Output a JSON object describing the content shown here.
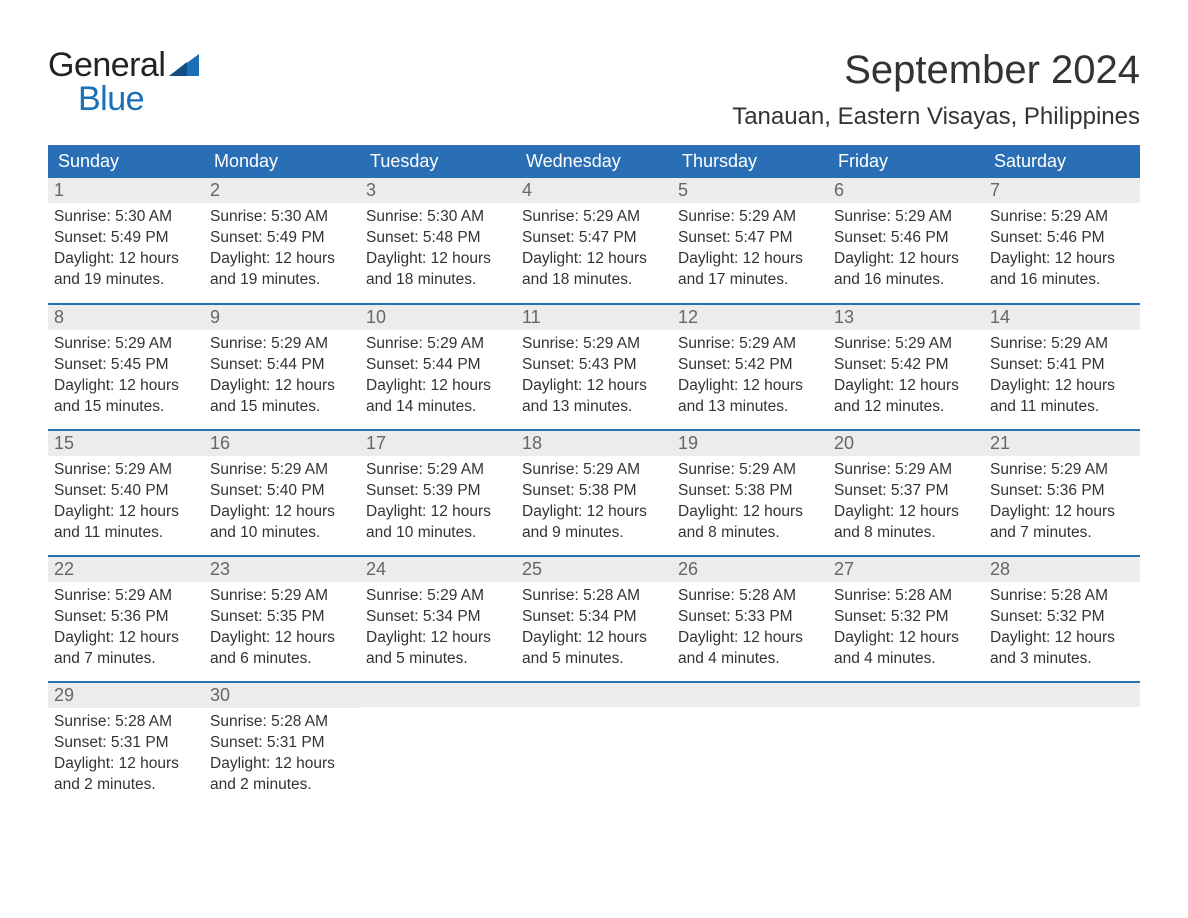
{
  "logo": {
    "word1": "General",
    "word2": "Blue",
    "text_color": "#222222",
    "accent_color": "#1a6fb8"
  },
  "header": {
    "month_title": "September 2024",
    "location": "Tanauan, Eastern Visayas, Philippines"
  },
  "colors": {
    "header_row_bg": "#2a6eb6",
    "header_row_text": "#ffffff",
    "daynum_bg": "#ececec",
    "daynum_text": "#666666",
    "body_text": "#333333",
    "week_separator": "#2a6eb6",
    "page_bg": "#ffffff"
  },
  "layout": {
    "columns": 7,
    "rows": 5,
    "col_width_pct": 14.28
  },
  "weekdays": [
    "Sunday",
    "Monday",
    "Tuesday",
    "Wednesday",
    "Thursday",
    "Friday",
    "Saturday"
  ],
  "days": [
    {
      "n": "1",
      "sunrise": "Sunrise: 5:30 AM",
      "sunset": "Sunset: 5:49 PM",
      "d1": "Daylight: 12 hours",
      "d2": "and 19 minutes."
    },
    {
      "n": "2",
      "sunrise": "Sunrise: 5:30 AM",
      "sunset": "Sunset: 5:49 PM",
      "d1": "Daylight: 12 hours",
      "d2": "and 19 minutes."
    },
    {
      "n": "3",
      "sunrise": "Sunrise: 5:30 AM",
      "sunset": "Sunset: 5:48 PM",
      "d1": "Daylight: 12 hours",
      "d2": "and 18 minutes."
    },
    {
      "n": "4",
      "sunrise": "Sunrise: 5:29 AM",
      "sunset": "Sunset: 5:47 PM",
      "d1": "Daylight: 12 hours",
      "d2": "and 18 minutes."
    },
    {
      "n": "5",
      "sunrise": "Sunrise: 5:29 AM",
      "sunset": "Sunset: 5:47 PM",
      "d1": "Daylight: 12 hours",
      "d2": "and 17 minutes."
    },
    {
      "n": "6",
      "sunrise": "Sunrise: 5:29 AM",
      "sunset": "Sunset: 5:46 PM",
      "d1": "Daylight: 12 hours",
      "d2": "and 16 minutes."
    },
    {
      "n": "7",
      "sunrise": "Sunrise: 5:29 AM",
      "sunset": "Sunset: 5:46 PM",
      "d1": "Daylight: 12 hours",
      "d2": "and 16 minutes."
    },
    {
      "n": "8",
      "sunrise": "Sunrise: 5:29 AM",
      "sunset": "Sunset: 5:45 PM",
      "d1": "Daylight: 12 hours",
      "d2": "and 15 minutes."
    },
    {
      "n": "9",
      "sunrise": "Sunrise: 5:29 AM",
      "sunset": "Sunset: 5:44 PM",
      "d1": "Daylight: 12 hours",
      "d2": "and 15 minutes."
    },
    {
      "n": "10",
      "sunrise": "Sunrise: 5:29 AM",
      "sunset": "Sunset: 5:44 PM",
      "d1": "Daylight: 12 hours",
      "d2": "and 14 minutes."
    },
    {
      "n": "11",
      "sunrise": "Sunrise: 5:29 AM",
      "sunset": "Sunset: 5:43 PM",
      "d1": "Daylight: 12 hours",
      "d2": "and 13 minutes."
    },
    {
      "n": "12",
      "sunrise": "Sunrise: 5:29 AM",
      "sunset": "Sunset: 5:42 PM",
      "d1": "Daylight: 12 hours",
      "d2": "and 13 minutes."
    },
    {
      "n": "13",
      "sunrise": "Sunrise: 5:29 AM",
      "sunset": "Sunset: 5:42 PM",
      "d1": "Daylight: 12 hours",
      "d2": "and 12 minutes."
    },
    {
      "n": "14",
      "sunrise": "Sunrise: 5:29 AM",
      "sunset": "Sunset: 5:41 PM",
      "d1": "Daylight: 12 hours",
      "d2": "and 11 minutes."
    },
    {
      "n": "15",
      "sunrise": "Sunrise: 5:29 AM",
      "sunset": "Sunset: 5:40 PM",
      "d1": "Daylight: 12 hours",
      "d2": "and 11 minutes."
    },
    {
      "n": "16",
      "sunrise": "Sunrise: 5:29 AM",
      "sunset": "Sunset: 5:40 PM",
      "d1": "Daylight: 12 hours",
      "d2": "and 10 minutes."
    },
    {
      "n": "17",
      "sunrise": "Sunrise: 5:29 AM",
      "sunset": "Sunset: 5:39 PM",
      "d1": "Daylight: 12 hours",
      "d2": "and 10 minutes."
    },
    {
      "n": "18",
      "sunrise": "Sunrise: 5:29 AM",
      "sunset": "Sunset: 5:38 PM",
      "d1": "Daylight: 12 hours",
      "d2": "and 9 minutes."
    },
    {
      "n": "19",
      "sunrise": "Sunrise: 5:29 AM",
      "sunset": "Sunset: 5:38 PM",
      "d1": "Daylight: 12 hours",
      "d2": "and 8 minutes."
    },
    {
      "n": "20",
      "sunrise": "Sunrise: 5:29 AM",
      "sunset": "Sunset: 5:37 PM",
      "d1": "Daylight: 12 hours",
      "d2": "and 8 minutes."
    },
    {
      "n": "21",
      "sunrise": "Sunrise: 5:29 AM",
      "sunset": "Sunset: 5:36 PM",
      "d1": "Daylight: 12 hours",
      "d2": "and 7 minutes."
    },
    {
      "n": "22",
      "sunrise": "Sunrise: 5:29 AM",
      "sunset": "Sunset: 5:36 PM",
      "d1": "Daylight: 12 hours",
      "d2": "and 7 minutes."
    },
    {
      "n": "23",
      "sunrise": "Sunrise: 5:29 AM",
      "sunset": "Sunset: 5:35 PM",
      "d1": "Daylight: 12 hours",
      "d2": "and 6 minutes."
    },
    {
      "n": "24",
      "sunrise": "Sunrise: 5:29 AM",
      "sunset": "Sunset: 5:34 PM",
      "d1": "Daylight: 12 hours",
      "d2": "and 5 minutes."
    },
    {
      "n": "25",
      "sunrise": "Sunrise: 5:28 AM",
      "sunset": "Sunset: 5:34 PM",
      "d1": "Daylight: 12 hours",
      "d2": "and 5 minutes."
    },
    {
      "n": "26",
      "sunrise": "Sunrise: 5:28 AM",
      "sunset": "Sunset: 5:33 PM",
      "d1": "Daylight: 12 hours",
      "d2": "and 4 minutes."
    },
    {
      "n": "27",
      "sunrise": "Sunrise: 5:28 AM",
      "sunset": "Sunset: 5:32 PM",
      "d1": "Daylight: 12 hours",
      "d2": "and 4 minutes."
    },
    {
      "n": "28",
      "sunrise": "Sunrise: 5:28 AM",
      "sunset": "Sunset: 5:32 PM",
      "d1": "Daylight: 12 hours",
      "d2": "and 3 minutes."
    },
    {
      "n": "29",
      "sunrise": "Sunrise: 5:28 AM",
      "sunset": "Sunset: 5:31 PM",
      "d1": "Daylight: 12 hours",
      "d2": "and 2 minutes."
    },
    {
      "n": "30",
      "sunrise": "Sunrise: 5:28 AM",
      "sunset": "Sunset: 5:31 PM",
      "d1": "Daylight: 12 hours",
      "d2": "and 2 minutes."
    }
  ]
}
